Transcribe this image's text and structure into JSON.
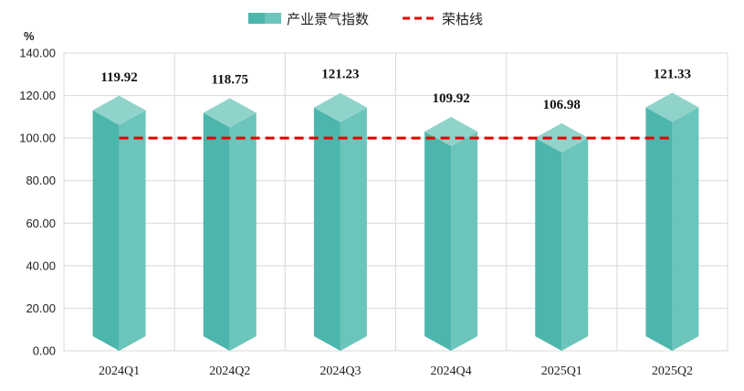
{
  "chart_data": {
    "type": "bar",
    "style": "3d-prism",
    "categories": [
      "2024Q1",
      "2024Q2",
      "2024Q3",
      "2024Q4",
      "2025Q1",
      "2025Q2"
    ],
    "series": [
      {
        "name": "产业景气指数",
        "type": "bar",
        "values": [
          119.92,
          118.75,
          121.23,
          109.92,
          106.98,
          121.33
        ]
      },
      {
        "name": "荣枯线",
        "type": "line",
        "dashed": true,
        "values": [
          100,
          100,
          100,
          100,
          100,
          100
        ]
      }
    ],
    "data_labels": [
      "119.92",
      "118.75",
      "121.23",
      "109.92",
      "106.98",
      "121.33"
    ],
    "ylabel": "%",
    "ylim": [
      0,
      140
    ],
    "yticks": [
      "0.00",
      "20.00",
      "40.00",
      "60.00",
      "80.00",
      "100.00",
      "120.00",
      "140.00"
    ],
    "grid": true,
    "legend_position": "top-center",
    "colors": {
      "bar_left": "#4db6ac",
      "bar_right": "#6cc5ba",
      "bar_top": "#8fd3ca",
      "threshold_line": "#e00000",
      "grid": "#d9d9d9",
      "axis": "#bfbfbf"
    }
  }
}
